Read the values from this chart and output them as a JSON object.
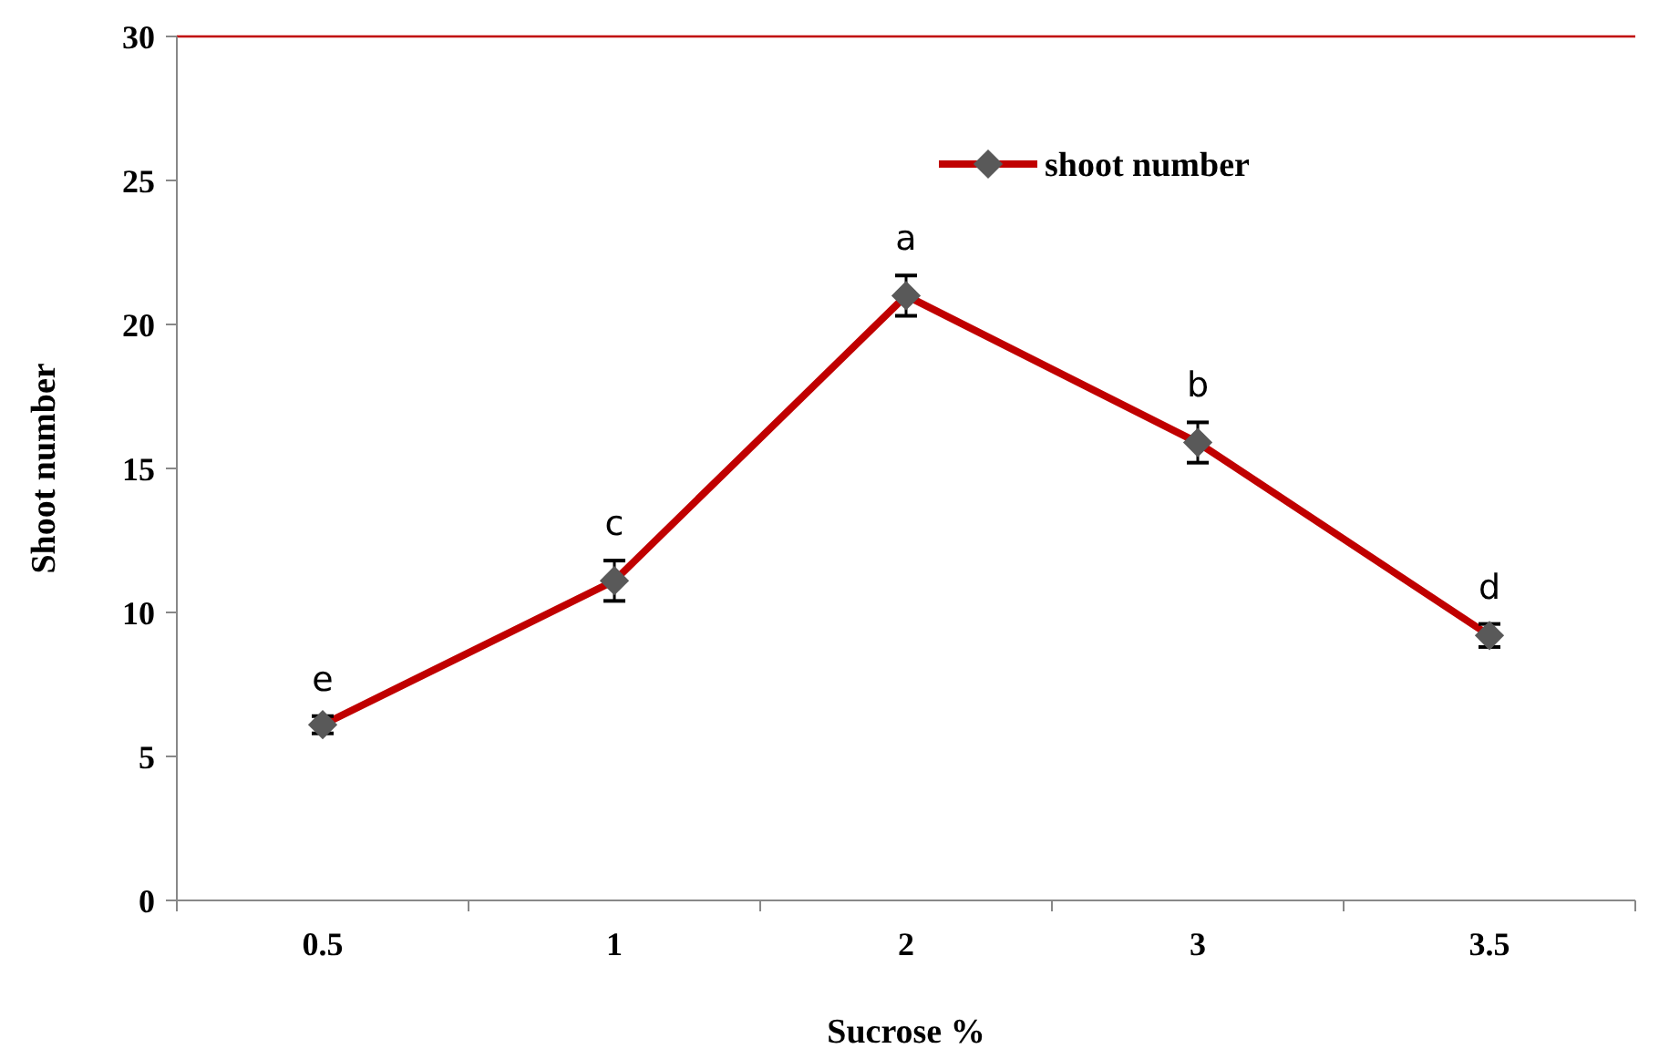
{
  "chart_data": {
    "type": "line",
    "xlabel": "Sucrose %",
    "ylabel": "Shoot number",
    "categories": [
      "0.5",
      "1",
      "2",
      "3",
      "3.5"
    ],
    "series": [
      {
        "name": "shoot number",
        "color": "#c00000",
        "values": [
          6.1,
          11.1,
          21.0,
          15.9,
          9.2
        ],
        "errors": [
          0.3,
          0.7,
          0.7,
          0.7,
          0.4
        ]
      }
    ],
    "ylim": [
      0,
      30
    ],
    "yticks": [
      0,
      5,
      10,
      15,
      20,
      25,
      30
    ],
    "marker": "diamond",
    "legend": "top right",
    "ref_lines": [
      {
        "axis": "y",
        "value": 30,
        "color": "#c00000"
      }
    ],
    "annotations": [
      {
        "text": "e",
        "x": "0.5",
        "y": 6.1
      },
      {
        "text": "c",
        "x": "1",
        "y": 11.1
      },
      {
        "text": "a",
        "x": "2",
        "y": 21.0
      },
      {
        "text": "b",
        "x": "3",
        "y": 15.9
      },
      {
        "text": "d",
        "x": "3.5",
        "y": 9.2
      }
    ]
  }
}
